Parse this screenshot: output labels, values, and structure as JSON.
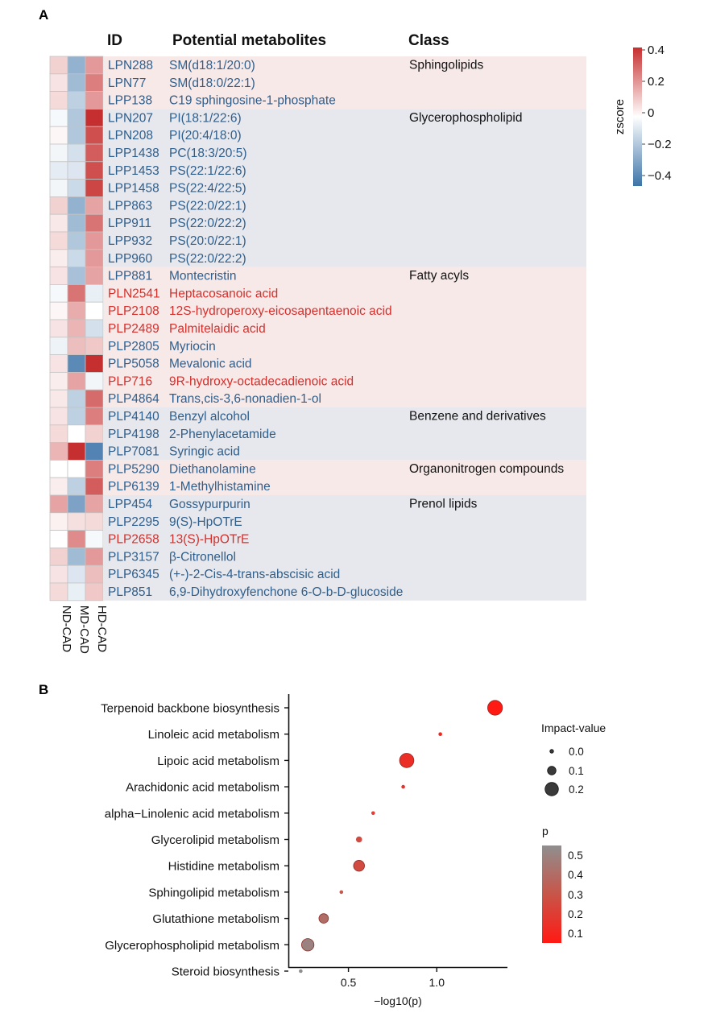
{
  "panel_a": {
    "label": "A",
    "headers": {
      "id": "ID",
      "metabolites": "Potential metabolites",
      "class": "Class"
    },
    "columns": [
      "ND-CAD",
      "MD-CAD",
      "HD-CAD"
    ],
    "colorbar": {
      "title": "zscore",
      "ticks": [
        "0.4",
        "0.2",
        "0",
        "−0.2",
        "−0.4"
      ]
    },
    "colors": {
      "blue_text": "#2e5e8c",
      "red_text": "#d4302c",
      "band_pink": "#f8e9e9",
      "band_gray": "#e7e8ed"
    }
  },
  "panel_b": {
    "label": "B",
    "xlabel": "−log10(p)",
    "xticks": [
      "0.5",
      "1.0"
    ],
    "legend_impact": {
      "title": "Impact-value",
      "labels": [
        "0.0",
        "0.1",
        "0.2"
      ]
    },
    "legend_p": {
      "title": "p",
      "labels": [
        "0.5",
        "0.4",
        "0.3",
        "0.2",
        "0.1"
      ]
    }
  },
  "chart_data": [
    {
      "type": "heatmap",
      "title": "",
      "columns": [
        "ND-CAD",
        "MD-CAD",
        "HD-CAD"
      ],
      "zlim": [
        -0.45,
        0.45
      ],
      "classes": [
        {
          "name": "Sphingolipids",
          "start": 0,
          "count": 3
        },
        {
          "name": "Glycerophospholipid",
          "start": 3,
          "count": 9
        },
        {
          "name": "Fatty acyls",
          "start": 12,
          "count": 8
        },
        {
          "name": "Benzene and derivatives",
          "start": 20,
          "count": 3
        },
        {
          "name": "Organonitrogen compounds",
          "start": 23,
          "count": 2
        },
        {
          "name": "Prenol lipids",
          "start": 25,
          "count": 6
        }
      ],
      "rows": [
        {
          "id": "LPN288",
          "name": "SM(d18:1/20:0)",
          "red": false,
          "values": [
            0.1,
            -0.25,
            0.22
          ]
        },
        {
          "id": "LPN77",
          "name": "SM(d18:0/22:1)",
          "red": false,
          "values": [
            0.06,
            -0.22,
            0.28
          ]
        },
        {
          "id": "LPP138",
          "name": "C19 sphingosine-1-phosphate",
          "red": false,
          "values": [
            0.08,
            -0.15,
            0.22
          ]
        },
        {
          "id": "LPN207",
          "name": "PI(18:1/22:6)",
          "red": false,
          "values": [
            -0.02,
            -0.18,
            0.45
          ]
        },
        {
          "id": "LPN208",
          "name": "PI(20:4/18:0)",
          "red": false,
          "values": [
            0.02,
            -0.18,
            0.38
          ]
        },
        {
          "id": "LPP1438",
          "name": "PC(18:3/20:5)",
          "red": false,
          "values": [
            -0.03,
            -0.1,
            0.35
          ]
        },
        {
          "id": "LPP1453",
          "name": "PS(22:1/22:6)",
          "red": false,
          "values": [
            -0.06,
            -0.08,
            0.38
          ]
        },
        {
          "id": "LPP1458",
          "name": "PS(22:4/22:5)",
          "red": false,
          "values": [
            -0.03,
            -0.12,
            0.4
          ]
        },
        {
          "id": "LPP863",
          "name": "PS(22:0/22:1)",
          "red": false,
          "values": [
            0.1,
            -0.25,
            0.2
          ]
        },
        {
          "id": "LPP911",
          "name": "PS(22:0/22:2)",
          "red": false,
          "values": [
            0.05,
            -0.22,
            0.3
          ]
        },
        {
          "id": "LPP932",
          "name": "PS(20:0/22:1)",
          "red": false,
          "values": [
            0.08,
            -0.18,
            0.22
          ]
        },
        {
          "id": "LPP960",
          "name": "PS(22:0/22:2)",
          "red": false,
          "values": [
            0.04,
            -0.12,
            0.22
          ]
        },
        {
          "id": "LPP881",
          "name": "Montecristin",
          "red": false,
          "values": [
            0.06,
            -0.2,
            0.2
          ]
        },
        {
          "id": "PLN2541",
          "name": "Heptacosanoic acid",
          "red": true,
          "values": [
            -0.02,
            0.3,
            -0.05
          ]
        },
        {
          "id": "PLP2108",
          "name": "12S-hydroperoxy-eicosapentaenoic acid",
          "red": true,
          "values": [
            0.02,
            0.18,
            0.0
          ]
        },
        {
          "id": "PLP2489",
          "name": "Palmitelaidic acid",
          "red": true,
          "values": [
            0.06,
            0.16,
            -0.1
          ]
        },
        {
          "id": "PLP2805",
          "name": "Myriocin",
          "red": false,
          "values": [
            -0.04,
            0.14,
            0.12
          ]
        },
        {
          "id": "PLP5058",
          "name": "Mevalonic acid",
          "red": false,
          "values": [
            0.06,
            -0.38,
            0.45
          ]
        },
        {
          "id": "PLP716",
          "name": "9R-hydroxy-octadecadienoic acid",
          "red": true,
          "values": [
            0.04,
            0.2,
            -0.03
          ]
        },
        {
          "id": "PLP4864",
          "name": "Trans,cis-3,6-nonadien-1-ol",
          "red": false,
          "values": [
            0.05,
            -0.15,
            0.32
          ]
        },
        {
          "id": "PLP4140",
          "name": "Benzyl alcohol",
          "red": false,
          "values": [
            0.06,
            -0.15,
            0.28
          ]
        },
        {
          "id": "PLP4198",
          "name": "2-Phenylacetamide",
          "red": false,
          "values": [
            0.08,
            0.0,
            0.1
          ]
        },
        {
          "id": "PLP7081",
          "name": "Syringic acid",
          "red": false,
          "values": [
            0.16,
            0.45,
            -0.4
          ]
        },
        {
          "id": "PLP5290",
          "name": "Diethanolamine",
          "red": false,
          "values": [
            0.0,
            0.0,
            0.28
          ]
        },
        {
          "id": "PLP6139",
          "name": "1-Methylhistamine",
          "red": false,
          "values": [
            0.04,
            -0.15,
            0.35
          ]
        },
        {
          "id": "LPP454",
          "name": "Gossypurpurin",
          "red": false,
          "values": [
            0.2,
            -0.3,
            0.2
          ]
        },
        {
          "id": "PLP2295",
          "name": "9(S)-HpOTrE",
          "red": false,
          "values": [
            0.03,
            0.07,
            0.08
          ]
        },
        {
          "id": "PLP2658",
          "name": "13(S)-HpOTrE",
          "red": true,
          "values": [
            0.0,
            0.25,
            -0.02
          ]
        },
        {
          "id": "PLP3157",
          "name": "β-Citronellol",
          "red": false,
          "values": [
            0.1,
            -0.22,
            0.22
          ]
        },
        {
          "id": "PLP6345",
          "name": "(+-)-2-Cis-4-trans-abscisic acid",
          "red": false,
          "values": [
            0.06,
            -0.08,
            0.14
          ]
        },
        {
          "id": "PLP851",
          "name": "6,9-Dihydroxyfenchone 6-O-b-D-glucoside",
          "red": false,
          "values": [
            0.08,
            -0.05,
            0.12
          ]
        }
      ]
    },
    {
      "type": "scatter",
      "title": "",
      "xlabel": "−log10(p)",
      "ylabel": "",
      "xlim": [
        0.16,
        1.4
      ],
      "categories": [
        "Terpenoid backbone biosynthesis",
        "Linoleic acid metabolism",
        "Lipoic acid metabolism",
        "Arachidonic acid metabolism",
        "alpha−Linolenic acid metabolism",
        "Glycerolipid metabolism",
        "Histidine metabolism",
        "Sphingolipid metabolism",
        "Glutathione metabolism",
        "Glycerophospholipid metabolism",
        "Steroid biosynthesis"
      ],
      "x": [
        1.33,
        1.02,
        0.83,
        0.81,
        0.64,
        0.56,
        0.56,
        0.46,
        0.36,
        0.27,
        0.23
      ],
      "impact": [
        0.23,
        0.0,
        0.22,
        0.0,
        0.0,
        0.05,
        0.15,
        0.0,
        0.12,
        0.18,
        0.0
      ],
      "p": [
        0.05,
        0.1,
        0.15,
        0.16,
        0.23,
        0.28,
        0.28,
        0.35,
        0.44,
        0.54,
        0.59
      ]
    }
  ]
}
